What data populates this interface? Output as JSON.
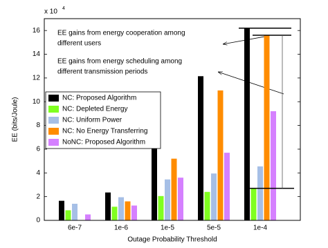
{
  "chart_data": {
    "type": "bar",
    "multiplier": {
      "base": "x 10",
      "exponent": "4"
    },
    "xlabel": "Outage Probability Threshold",
    "ylabel": "EE (bits/Joule)",
    "categories": [
      "6e-7",
      "1e-6",
      "1e-5",
      "5e-5",
      "1e-4"
    ],
    "series": [
      {
        "name": "NC: Proposed Algorithm",
        "color": "#000000",
        "values": [
          1.65,
          2.35,
          6.15,
          12.15,
          16.2
        ]
      },
      {
        "name": "NC: Depleted Energy",
        "color": "#80ff20",
        "values": [
          0.85,
          1.15,
          2.05,
          2.4,
          2.7
        ]
      },
      {
        "name": "NC: Uniform Power",
        "color": "#a6bfe6",
        "values": [
          1.4,
          1.95,
          3.45,
          3.95,
          4.55
        ]
      },
      {
        "name": "NC:  No Energy Transferring",
        "color": "#ff8c00",
        "values": [
          null,
          1.6,
          5.2,
          10.95,
          15.6
        ]
      },
      {
        "name": "NoNC:  Proposed Algorithm",
        "color": "#d580ff",
        "values": [
          0.5,
          1.25,
          3.6,
          5.7,
          9.2
        ]
      }
    ],
    "annotations": [
      [
        "EE gains from energy cooperation among",
        "different users"
      ],
      [
        "EE gains from  energy scheduling among",
        "different transmission periods"
      ]
    ],
    "ylim": [
      0,
      17
    ],
    "yticks": [
      0,
      2,
      4,
      6,
      8,
      10,
      12,
      14,
      16
    ],
    "legend": "upper left",
    "box": true
  }
}
